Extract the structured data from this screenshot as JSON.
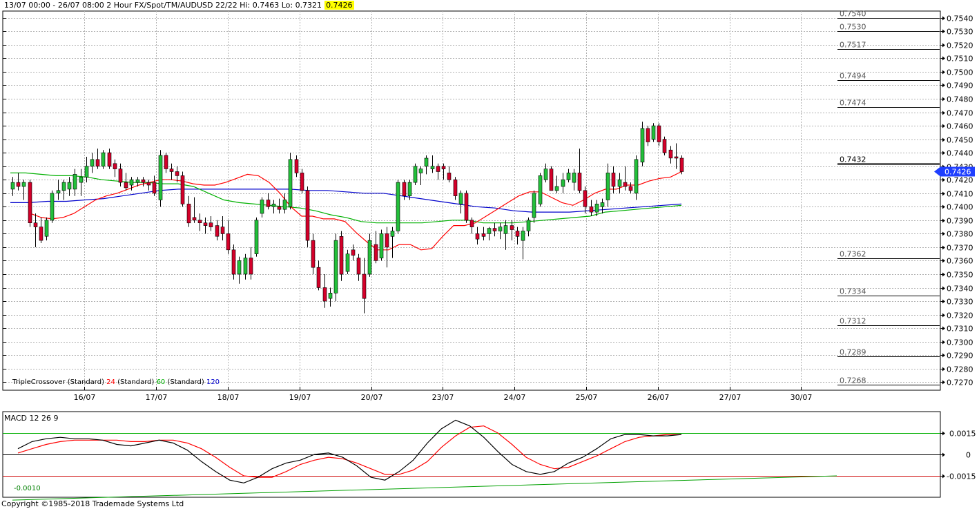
{
  "header": {
    "text": "13/07 00:00 - 26/07 08:00  2 Hour  FX/Spot/TM/AUDUSD 22/22  Hi: 0.7463 Lo: 0.7321",
    "current": "0.7426"
  },
  "copyright": "Copyright ©1985-2018 Trademade Systems Ltd",
  "colors": {
    "bull": "#22c03a",
    "bear": "#d4002a",
    "ma24": "#ff0000",
    "ma60": "#00b000",
    "ma120": "#0000cc",
    "grid": "#b0b0b0",
    "price_badge": "#1f3fff"
  },
  "chart_data": [
    {
      "type": "candlestick",
      "indicator_label": {
        "name": "TripleCrossover",
        "mode": "(Standard)",
        "p1": "24",
        "p2": "60",
        "p3": "120"
      },
      "x_labels": [
        "16/07",
        "17/07",
        "18/07",
        "19/07",
        "20/07",
        "23/07",
        "24/07",
        "25/07",
        "26/07",
        "27/07",
        "30/07"
      ],
      "y_ticks": [
        "0.7540",
        "0.7530",
        "0.7520",
        "0.7510",
        "0.7500",
        "0.7490",
        "0.7480",
        "0.7470",
        "0.7460",
        "0.7450",
        "0.7440",
        "0.7430",
        "0.7420",
        "0.7410",
        "0.7400",
        "0.7390",
        "0.7380",
        "0.7370",
        "0.7360",
        "0.7350",
        "0.7340",
        "0.7330",
        "0.7320",
        "0.7310",
        "0.7300",
        "0.7290",
        "0.7280",
        "0.7270"
      ],
      "ylim": [
        0.7264,
        0.7545
      ],
      "current_price": "0.7426",
      "levels": [
        {
          "label": "0.7540",
          "value": 0.754
        },
        {
          "label": "0.7530",
          "value": 0.753
        },
        {
          "label": "0.7517",
          "value": 0.7517
        },
        {
          "label": "0.7494",
          "value": 0.7494
        },
        {
          "label": "0.7474",
          "value": 0.7474
        },
        {
          "label": "0.7432",
          "value": 0.7432,
          "bold": true
        },
        {
          "label": "0.7362",
          "value": 0.7362
        },
        {
          "label": "0.7334",
          "value": 0.7334
        },
        {
          "label": "0.7312",
          "value": 0.7312
        },
        {
          "label": "0.7289",
          "value": 0.7289
        },
        {
          "label": "0.7268",
          "value": 0.7268
        }
      ],
      "candles": [
        [
          0.7413,
          0.7422,
          0.7408,
          0.7418
        ],
        [
          0.7418,
          0.7425,
          0.7412,
          0.7415
        ],
        [
          0.7415,
          0.742,
          0.7405,
          0.7418
        ],
        [
          0.7418,
          0.742,
          0.7385,
          0.7388
        ],
        [
          0.7388,
          0.7395,
          0.737,
          0.7385
        ],
        [
          0.7385,
          0.7392,
          0.7373,
          0.7375
        ],
        [
          0.7378,
          0.7392,
          0.7375,
          0.739
        ],
        [
          0.739,
          0.7412,
          0.7388,
          0.741
        ],
        [
          0.741,
          0.742,
          0.7405,
          0.7412
        ],
        [
          0.7412,
          0.742,
          0.7405,
          0.7418
        ],
        [
          0.7413,
          0.7422,
          0.7408,
          0.7418
        ],
        [
          0.7413,
          0.7428,
          0.7408,
          0.7424
        ],
        [
          0.7418,
          0.7428,
          0.7408,
          0.7422
        ],
        [
          0.7422,
          0.7437,
          0.7418,
          0.743
        ],
        [
          0.743,
          0.744,
          0.7425,
          0.7435
        ],
        [
          0.7435,
          0.7443,
          0.7428,
          0.743
        ],
        [
          0.743,
          0.7442,
          0.7428,
          0.744
        ],
        [
          0.744,
          0.7443,
          0.7428,
          0.743
        ],
        [
          0.7432,
          0.7435,
          0.7422,
          0.7428
        ],
        [
          0.7428,
          0.7432,
          0.7415,
          0.7418
        ],
        [
          0.7418,
          0.7425,
          0.7412,
          0.7414
        ],
        [
          0.7416,
          0.7422,
          0.7412,
          0.742
        ],
        [
          0.7418,
          0.7422,
          0.7415,
          0.742
        ],
        [
          0.742,
          0.7422,
          0.7415,
          0.7418
        ],
        [
          0.7418,
          0.742,
          0.7412,
          0.7416
        ],
        [
          0.7418,
          0.7423,
          0.7408,
          0.741
        ],
        [
          0.7405,
          0.7442,
          0.74,
          0.7438
        ],
        [
          0.7438,
          0.744,
          0.7425,
          0.7428
        ],
        [
          0.7428,
          0.7432,
          0.742,
          0.7426
        ],
        [
          0.7426,
          0.743,
          0.7418,
          0.7423
        ],
        [
          0.7423,
          0.7426,
          0.74,
          0.7402
        ],
        [
          0.7402,
          0.7408,
          0.7385,
          0.7388
        ],
        [
          0.7392,
          0.7407,
          0.7388,
          0.739
        ],
        [
          0.739,
          0.7395,
          0.7382,
          0.7388
        ],
        [
          0.7388,
          0.7392,
          0.738,
          0.7386
        ],
        [
          0.7388,
          0.7393,
          0.7382,
          0.7385
        ],
        [
          0.7386,
          0.739,
          0.7375,
          0.7378
        ],
        [
          0.7385,
          0.7393,
          0.7375,
          0.738
        ],
        [
          0.738,
          0.739,
          0.7365,
          0.7368
        ],
        [
          0.7368,
          0.7372,
          0.7346,
          0.735
        ],
        [
          0.735,
          0.7363,
          0.7343,
          0.736
        ],
        [
          0.735,
          0.7365,
          0.7346,
          0.7362
        ],
        [
          0.7362,
          0.737,
          0.7346,
          0.735
        ],
        [
          0.7365,
          0.7392,
          0.7363,
          0.739
        ],
        [
          0.7395,
          0.7407,
          0.7392,
          0.7405
        ],
        [
          0.7405,
          0.741,
          0.7398,
          0.74
        ],
        [
          0.74,
          0.7405,
          0.7395,
          0.7402
        ],
        [
          0.74,
          0.7406,
          0.7395,
          0.7398
        ],
        [
          0.7398,
          0.741,
          0.7395,
          0.7405
        ],
        [
          0.74,
          0.744,
          0.7398,
          0.7435
        ],
        [
          0.7435,
          0.7438,
          0.7422,
          0.7425
        ],
        [
          0.7425,
          0.7428,
          0.741,
          0.7412
        ],
        [
          0.7412,
          0.7415,
          0.737,
          0.7375
        ],
        [
          0.7375,
          0.738,
          0.735,
          0.7355
        ],
        [
          0.7355,
          0.736,
          0.7338,
          0.734
        ],
        [
          0.734,
          0.735,
          0.7325,
          0.733
        ],
        [
          0.7332,
          0.734,
          0.7326,
          0.7336
        ],
        [
          0.7336,
          0.738,
          0.733,
          0.7375
        ],
        [
          0.7378,
          0.7382,
          0.7345,
          0.735
        ],
        [
          0.7352,
          0.7368,
          0.735,
          0.7365
        ],
        [
          0.7368,
          0.7372,
          0.736,
          0.7364
        ],
        [
          0.7362,
          0.7365,
          0.7345,
          0.735
        ],
        [
          0.735,
          0.7362,
          0.7321,
          0.7332
        ],
        [
          0.735,
          0.738,
          0.7348,
          0.7375
        ],
        [
          0.7372,
          0.7382,
          0.7358,
          0.736
        ],
        [
          0.7362,
          0.7383,
          0.736,
          0.738
        ],
        [
          0.738,
          0.7385,
          0.7355,
          0.737
        ],
        [
          0.7378,
          0.7385,
          0.7362,
          0.7382
        ],
        [
          0.7382,
          0.742,
          0.738,
          0.7418
        ],
        [
          0.7418,
          0.742,
          0.7405,
          0.7408
        ],
        [
          0.7408,
          0.742,
          0.7405,
          0.7418
        ],
        [
          0.7418,
          0.7432,
          0.7416,
          0.743
        ],
        [
          0.7425,
          0.743,
          0.7416,
          0.7428
        ],
        [
          0.743,
          0.7438,
          0.7424,
          0.7436
        ],
        [
          0.7428,
          0.7438,
          0.7425,
          0.743
        ],
        [
          0.743,
          0.7432,
          0.742,
          0.7426
        ],
        [
          0.743,
          0.7432,
          0.742,
          0.7428
        ],
        [
          0.7425,
          0.743,
          0.7418,
          0.742
        ],
        [
          0.742,
          0.7422,
          0.7405,
          0.7408
        ],
        [
          0.7402,
          0.7412,
          0.7395,
          0.741
        ],
        [
          0.741,
          0.7412,
          0.7388,
          0.739
        ],
        [
          0.739,
          0.7392,
          0.738,
          0.7385
        ],
        [
          0.738,
          0.7385,
          0.7372,
          0.7376
        ],
        [
          0.738,
          0.7385,
          0.7375,
          0.7378
        ],
        [
          0.738,
          0.7385,
          0.7375,
          0.7384
        ],
        [
          0.7384,
          0.7388,
          0.7378,
          0.7382
        ],
        [
          0.7382,
          0.7388,
          0.7376,
          0.7385
        ],
        [
          0.738,
          0.739,
          0.7368,
          0.7386
        ],
        [
          0.7386,
          0.739,
          0.7375,
          0.7383
        ],
        [
          0.7382,
          0.7385,
          0.7372,
          0.7378
        ],
        [
          0.7375,
          0.7385,
          0.7361,
          0.7382
        ],
        [
          0.7382,
          0.7392,
          0.7378,
          0.739
        ],
        [
          0.7392,
          0.7412,
          0.7388,
          0.741
        ],
        [
          0.7402,
          0.7425,
          0.74,
          0.7423
        ],
        [
          0.742,
          0.7432,
          0.7418,
          0.7428
        ],
        [
          0.7428,
          0.743,
          0.7412,
          0.7412
        ],
        [
          0.7412,
          0.7423,
          0.741,
          0.7415
        ],
        [
          0.7415,
          0.7425,
          0.741,
          0.742
        ],
        [
          0.742,
          0.7428,
          0.7418,
          0.7425
        ],
        [
          0.7418,
          0.7428,
          0.7412,
          0.7425
        ],
        [
          0.7425,
          0.7443,
          0.741,
          0.7412
        ],
        [
          0.7412,
          0.7415,
          0.7395,
          0.74
        ],
        [
          0.74,
          0.7405,
          0.7393,
          0.7396
        ],
        [
          0.7396,
          0.7405,
          0.7393,
          0.7402
        ],
        [
          0.74,
          0.7406,
          0.7395,
          0.7403
        ],
        [
          0.7405,
          0.7432,
          0.74,
          0.7425
        ],
        [
          0.7425,
          0.743,
          0.741,
          0.7415
        ],
        [
          0.7415,
          0.7425,
          0.741,
          0.742
        ],
        [
          0.7418,
          0.743,
          0.7412,
          0.7415
        ],
        [
          0.7415,
          0.7418,
          0.741,
          0.7412
        ],
        [
          0.741,
          0.7438,
          0.7405,
          0.7435
        ],
        [
          0.7433,
          0.7463,
          0.743,
          0.7458
        ],
        [
          0.7458,
          0.746,
          0.7445,
          0.7448
        ],
        [
          0.745,
          0.7462,
          0.7448,
          0.746
        ],
        [
          0.746,
          0.7462,
          0.7445,
          0.7448
        ],
        [
          0.745,
          0.7452,
          0.7438,
          0.744
        ],
        [
          0.7442,
          0.7445,
          0.7432,
          0.7436
        ],
        [
          0.7437,
          0.7447,
          0.7428,
          0.7436
        ],
        [
          0.7436,
          0.7438,
          0.7424,
          0.7426
        ]
      ],
      "ma24": [
        0.7395,
        0.7392,
        0.7391,
        0.7392,
        0.7395,
        0.74,
        0.7405,
        0.7408,
        0.741,
        0.7413,
        0.7416,
        0.7418,
        0.742,
        0.742,
        0.7419,
        0.7417,
        0.7416,
        0.7416,
        0.7418,
        0.7421,
        0.7424,
        0.7423,
        0.7418,
        0.741,
        0.74,
        0.7393,
        0.7393,
        0.7391,
        0.7391,
        0.7389,
        0.7381,
        0.7374,
        0.7368,
        0.7368,
        0.7372,
        0.7372,
        0.7368,
        0.7369,
        0.7378,
        0.7386,
        0.7386,
        0.7388,
        0.7393,
        0.7398,
        0.7403,
        0.7408,
        0.7411,
        0.7411,
        0.7407,
        0.7403,
        0.7401,
        0.7405,
        0.741,
        0.7413,
        0.7413,
        0.7416,
        0.7416,
        0.7419,
        0.7421,
        0.7422,
        0.7426
      ],
      "ma60": [
        0.7425,
        0.7425,
        0.7424,
        0.7423,
        0.7423,
        0.7422,
        0.742,
        0.7419,
        0.7418,
        0.7418,
        0.7417,
        0.7417,
        0.7415,
        0.741,
        0.7405,
        0.7403,
        0.7402,
        0.7401,
        0.74,
        0.7399,
        0.7397,
        0.7394,
        0.7392,
        0.7389,
        0.7388,
        0.7388,
        0.7388,
        0.7388,
        0.7389,
        0.739,
        0.739,
        0.7388,
        0.7388,
        0.7388,
        0.7389,
        0.739,
        0.7391,
        0.7392,
        0.7393,
        0.7396,
        0.7397,
        0.7398,
        0.7399,
        0.74,
        0.7401
      ],
      "ma120": [
        0.7403,
        0.7403,
        0.7404,
        0.7404,
        0.7405,
        0.7406,
        0.7408,
        0.741,
        0.7412,
        0.7413,
        0.7413,
        0.7413,
        0.7413,
        0.7413,
        0.7413,
        0.7413,
        0.7412,
        0.7412,
        0.7411,
        0.741,
        0.741,
        0.7408,
        0.7406,
        0.7404,
        0.7402,
        0.74,
        0.7399,
        0.7397,
        0.7396,
        0.7396,
        0.7396,
        0.7397,
        0.7398,
        0.7399,
        0.74,
        0.7401,
        0.7402
      ]
    },
    {
      "type": "line",
      "title": "MACD 12 26 9",
      "y_ticks": [
        "0.0015",
        "0",
        "-0.0015"
      ],
      "ylim": [
        -0.003,
        0.003
      ],
      "annotation": "-0.0010",
      "level_lines": [
        0.0015,
        0,
        -0.0015
      ],
      "macd": [
        0.0004,
        0.0009,
        0.0011,
        0.0012,
        0.0011,
        0.0011,
        0.001,
        0.0007,
        0.0006,
        0.0008,
        0.001,
        0.0008,
        0.0003,
        -0.0005,
        -0.0012,
        -0.0018,
        -0.002,
        -0.0016,
        -0.001,
        -0.0006,
        -0.0004,
        0.0,
        0.0001,
        -0.0002,
        -0.0008,
        -0.0016,
        -0.0018,
        -0.0012,
        -0.0004,
        0.0008,
        0.0018,
        0.0024,
        0.002,
        0.0012,
        0.0002,
        -0.0007,
        -0.0012,
        -0.0014,
        -0.0012,
        -0.0006,
        -0.0002,
        0.0004,
        0.0011,
        0.0014,
        0.0014,
        0.0013,
        0.0013,
        0.0014
      ],
      "signal": [
        0.0001,
        0.0004,
        0.0007,
        0.0009,
        0.001,
        0.001,
        0.001,
        0.001,
        0.0009,
        0.0009,
        0.001,
        0.001,
        0.0008,
        0.0004,
        -0.0002,
        -0.0009,
        -0.0015,
        -0.0016,
        -0.0016,
        -0.0012,
        -0.0007,
        -0.0004,
        -0.0002,
        -0.0003,
        -0.0006,
        -0.001,
        -0.0014,
        -0.0014,
        -0.0011,
        -0.0005,
        0.0005,
        0.0013,
        0.0019,
        0.002,
        0.0015,
        0.0007,
        -0.0002,
        -0.0007,
        -0.001,
        -0.0009,
        -0.0005,
        -0.0001,
        0.0004,
        0.0009,
        0.0012,
        0.0013,
        0.0014,
        0.0014
      ],
      "trendline": [
        -0.0032,
        -0.0015
      ]
    }
  ]
}
